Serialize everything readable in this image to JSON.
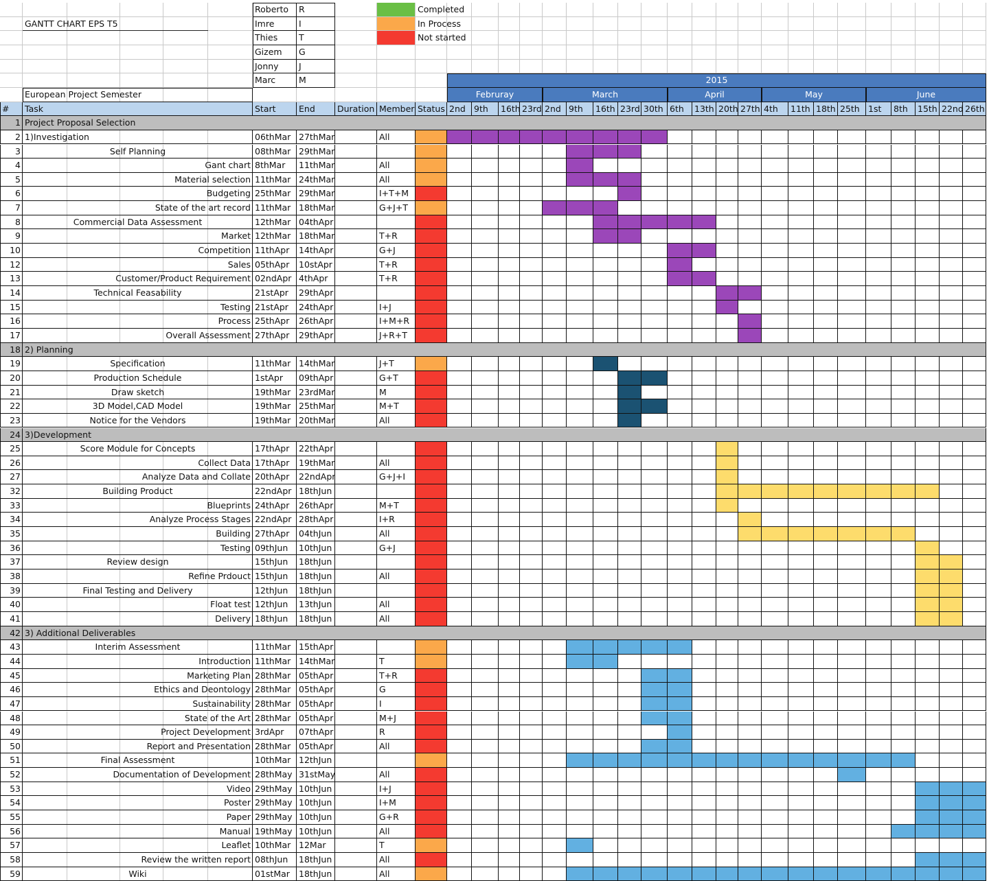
{
  "title": "GANTT CHART EPS T5",
  "project": "European Project Semester",
  "team": [
    {
      "name": "Roberto",
      "code": "R"
    },
    {
      "name": "Imre",
      "code": "I"
    },
    {
      "name": "Thies",
      "code": "T"
    },
    {
      "name": "Gizem",
      "code": "G"
    },
    {
      "name": "Jonny",
      "code": "J"
    },
    {
      "name": "Marc",
      "code": "M"
    }
  ],
  "legend": [
    {
      "label": "Completed",
      "color": "#6abf45"
    },
    {
      "label": "In Process",
      "color": "#fba84a"
    },
    {
      "label": "Not started",
      "color": "#f43a30"
    }
  ],
  "headers": {
    "num": "#",
    "task": "Task",
    "start": "Start",
    "end": "End",
    "duration": "Duration",
    "member": "Member",
    "status": "Status"
  },
  "chart_data": {
    "type": "table",
    "year": "2015",
    "months": [
      {
        "name": "Februray",
        "weeks": 4
      },
      {
        "name": "March",
        "weeks": 5
      },
      {
        "name": "April",
        "weeks": 4
      },
      {
        "name": "May",
        "weeks": 4
      },
      {
        "name": "June",
        "weeks": 5
      }
    ],
    "weeks": [
      "2nd",
      "9th",
      "16th",
      "23rd",
      "2nd",
      "9th",
      "16th",
      "23rd",
      "30th",
      "6th",
      "13th",
      "20th",
      "27th",
      "4th",
      "11th",
      "18th",
      "25th",
      "1st",
      "8th",
      "15th",
      "22nd",
      "26th"
    ],
    "colors": {
      "completed": "#6abf45",
      "in_process": "#fba84a",
      "not_started": "#f43a30",
      "investigation": "#9b47b9",
      "planning": "#1b5272",
      "development": "#fddc6c",
      "deliverables": "#62b0e1",
      "section_bg": "#bdbdbd",
      "month_bg": "#4a7bbe",
      "header_bg": "#bcd5ee"
    },
    "rows": [
      {
        "num": "1",
        "section": true,
        "task": "Project Proposal Selection"
      },
      {
        "num": "2",
        "task": "1)Investigation",
        "align": "left",
        "start": "06thMar",
        "end": "27thMar",
        "member": "All",
        "status": "in_process",
        "bars": [
          [
            0,
            8
          ]
        ],
        "bar": "investigation"
      },
      {
        "num": "3",
        "task": "Self Planning",
        "align": "center",
        "start": "08thMar",
        "end": "29thMar",
        "member": "",
        "status": "in_process",
        "bars": [
          [
            5,
            7
          ]
        ],
        "bar": "investigation"
      },
      {
        "num": "4",
        "task": "Gant chart",
        "align": "right",
        "start": "8thMar",
        "end": "11thMar",
        "member": "All",
        "status": "in_process",
        "bars": [
          [
            5,
            5
          ]
        ],
        "bar": "investigation"
      },
      {
        "num": "5",
        "task": "Material selection",
        "align": "right",
        "start": "11thMar",
        "end": "24thMar",
        "member": "All",
        "status": "in_process",
        "bars": [
          [
            5,
            7
          ]
        ],
        "bar": "investigation"
      },
      {
        "num": "6",
        "task": "Budgeting",
        "align": "right",
        "start": "25thMar",
        "end": "29thMar",
        "member": "I+T+M",
        "status": "not_started",
        "bars": [
          [
            7,
            7
          ]
        ],
        "bar": "investigation"
      },
      {
        "num": "7",
        "task": "State of the art record",
        "align": "right",
        "start": "11thMar",
        "end": "18thMar",
        "member": "G+J+T",
        "status": "in_process",
        "bars": [
          [
            4,
            6
          ]
        ],
        "bar": "investigation"
      },
      {
        "num": "8",
        "task": "Commercial Data Assessment",
        "align": "center",
        "start": "12thMar",
        "end": "04thApr",
        "member": "",
        "status": "not_started",
        "bars": [
          [
            6,
            10
          ]
        ],
        "bar": "investigation"
      },
      {
        "num": "9",
        "task": "Market",
        "align": "right",
        "start": "12thMar",
        "end": "18thMar",
        "member": "T+R",
        "status": "not_started",
        "bars": [
          [
            6,
            7
          ]
        ],
        "bar": "investigation"
      },
      {
        "num": "10",
        "task": "Competition",
        "align": "right",
        "start": "11thApr",
        "end": "14thApr",
        "member": "G+J",
        "status": "not_started",
        "bars": [
          [
            9,
            10
          ]
        ],
        "bar": "investigation"
      },
      {
        "num": "12",
        "task": "Sales",
        "align": "right",
        "start": "05thApr",
        "end": "10stApr",
        "member": "T+R",
        "status": "not_started",
        "bars": [
          [
            9,
            9
          ]
        ],
        "bar": "investigation"
      },
      {
        "num": "13",
        "task": "Customer/Product Requirement",
        "align": "right",
        "start": "02ndApr",
        "end": "4thApr",
        "member": "T+R",
        "status": "not_started",
        "bars": [
          [
            9,
            10
          ]
        ],
        "bar": "investigation"
      },
      {
        "num": "14",
        "task": "Technical Feasability",
        "align": "center",
        "start": "21stApr",
        "end": "29thApr",
        "member": "",
        "status": "not_started",
        "bars": [
          [
            11,
            12
          ]
        ],
        "bar": "investigation"
      },
      {
        "num": "15",
        "task": "Testing",
        "align": "right",
        "start": "21stApr",
        "end": "24thApr",
        "member": "I+J",
        "status": "not_started",
        "bars": [
          [
            11,
            11
          ]
        ],
        "bar": "investigation"
      },
      {
        "num": "16",
        "task": "Process",
        "align": "right",
        "start": "25thApr",
        "end": "26thApr",
        "member": "I+M+R",
        "status": "not_started",
        "bars": [
          [
            12,
            12
          ]
        ],
        "bar": "investigation"
      },
      {
        "num": "17",
        "task": "Overall Assessment",
        "align": "right",
        "start": "27thApr",
        "end": "29thApr",
        "member": "J+R+T",
        "status": "not_started",
        "bars": [
          [
            12,
            12
          ]
        ],
        "bar": "investigation"
      },
      {
        "num": "18",
        "section": true,
        "task": "2) Planning"
      },
      {
        "num": "19",
        "task": "Specification",
        "align": "center",
        "start": "11thMar",
        "end": "14thMar",
        "member": "J+T",
        "status": "in_process",
        "bars": [
          [
            6,
            6
          ]
        ],
        "bar": "planning"
      },
      {
        "num": "20",
        "task": "Production Schedule",
        "align": "center",
        "start": "1stApr",
        "end": "09thApr",
        "member": "G+T",
        "status": "not_started",
        "bars": [
          [
            7,
            8
          ]
        ],
        "bar": "planning"
      },
      {
        "num": "21",
        "task": "Draw sketch",
        "align": "center",
        "start": "19thMar",
        "end": "23rdMar",
        "member": "M",
        "status": "not_started",
        "bars": [
          [
            7,
            7
          ]
        ],
        "bar": "planning"
      },
      {
        "num": "22",
        "task": "3D Model,CAD Model",
        "align": "center",
        "start": "19thMar",
        "end": "25thMar",
        "member": "M+T",
        "status": "not_started",
        "bars": [
          [
            7,
            8
          ]
        ],
        "bar": "planning"
      },
      {
        "num": "23",
        "task": "Notice for the Vendors",
        "align": "center",
        "start": "19thMar",
        "end": "20thMar",
        "member": "All",
        "status": "not_started",
        "bars": [
          [
            7,
            7
          ]
        ],
        "bar": "planning"
      },
      {
        "num": "24",
        "section": true,
        "task": "3)Development"
      },
      {
        "num": "25",
        "task": "Score Module for Concepts",
        "align": "center",
        "start": "17thApr",
        "end": "22thApr",
        "member": "",
        "status": "not_started",
        "bars": [
          [
            11,
            11
          ]
        ],
        "bar": "development"
      },
      {
        "num": "26",
        "task": "Collect Data",
        "align": "right",
        "start": "17thApr",
        "end": "19thMar",
        "member": "All",
        "status": "not_started",
        "bars": [
          [
            11,
            11
          ]
        ],
        "bar": "development"
      },
      {
        "num": "27",
        "task": "Analyze Data and Collate",
        "align": "right",
        "start": "20thApr",
        "end": "22ndApr",
        "member": "G+J+I",
        "status": "not_started",
        "bars": [
          [
            11,
            11
          ]
        ],
        "bar": "development"
      },
      {
        "num": "32",
        "task": "Building Product",
        "align": "center",
        "start": "22ndApr",
        "end": "18thJun",
        "member": "",
        "status": "not_started",
        "bars": [
          [
            11,
            19
          ]
        ],
        "bar": "development"
      },
      {
        "num": "33",
        "task": "Blueprints",
        "align": "right",
        "start": "24thApr",
        "end": "26thApr",
        "member": "M+T",
        "status": "not_started",
        "bars": [
          [
            11,
            11
          ]
        ],
        "bar": "development"
      },
      {
        "num": "34",
        "task": "Analyze Process Stages",
        "align": "right",
        "start": "22ndApr",
        "end": "28thApr",
        "member": "I+R",
        "status": "not_started",
        "bars": [
          [
            12,
            12
          ]
        ],
        "bar": "development"
      },
      {
        "num": "35",
        "task": "Building",
        "align": "right",
        "start": "27thApr",
        "end": "04thJun",
        "member": "All",
        "status": "not_started",
        "bars": [
          [
            12,
            18
          ]
        ],
        "bar": "development"
      },
      {
        "num": "36",
        "task": "Testing",
        "align": "right",
        "start": "09thJun",
        "end": "10thJun",
        "member": "G+J",
        "status": "not_started",
        "bars": [
          [
            19,
            19
          ]
        ],
        "bar": "development"
      },
      {
        "num": "37",
        "task": "Review design",
        "align": "center",
        "start": "15thJun",
        "end": "18thJun",
        "member": "",
        "status": "not_started",
        "bars": [
          [
            19,
            20
          ]
        ],
        "bar": "development"
      },
      {
        "num": "38",
        "task": "Refine Prdouct",
        "align": "right",
        "start": "15thJun",
        "end": "18thJun",
        "member": "All",
        "status": "not_started",
        "bars": [
          [
            19,
            20
          ]
        ],
        "bar": "development"
      },
      {
        "num": "39",
        "task": "Final Testing and Delivery",
        "align": "center",
        "start": "12thJun",
        "end": "18thJun",
        "member": "",
        "status": "not_started",
        "bars": [
          [
            19,
            20
          ]
        ],
        "bar": "development"
      },
      {
        "num": "40",
        "task": "Float test",
        "align": "right",
        "start": "12thJun",
        "end": "13thJun",
        "member": "All",
        "status": "not_started",
        "bars": [
          [
            19,
            20
          ]
        ],
        "bar": "development"
      },
      {
        "num": "41",
        "task": "Delivery",
        "align": "right",
        "start": "18thJun",
        "end": "18thJun",
        "member": "All",
        "status": "not_started",
        "bars": [
          [
            19,
            20
          ]
        ],
        "bar": "development"
      },
      {
        "num": "42",
        "section": true,
        "task": "3) Additional Deliverables"
      },
      {
        "num": "43",
        "task": "Interim Assessment",
        "align": "center",
        "start": "11thMar",
        "end": "15thApr",
        "member": "",
        "status": "in_process",
        "bars": [
          [
            5,
            9
          ]
        ],
        "bar": "deliverables"
      },
      {
        "num": "44",
        "task": "Introduction",
        "align": "right",
        "start": "11thMar",
        "end": "14thMar",
        "member": "T",
        "status": "in_process",
        "bars": [
          [
            5,
            6
          ]
        ],
        "bar": "deliverables"
      },
      {
        "num": "45",
        "task": "Marketing Plan",
        "align": "right",
        "start": "28thMar",
        "end": "05thApr",
        "member": "T+R",
        "status": "not_started",
        "bars": [
          [
            8,
            9
          ]
        ],
        "bar": "deliverables"
      },
      {
        "num": "46",
        "task": "Ethics and Deontology",
        "align": "right",
        "start": "28thMar",
        "end": "05thApr",
        "member": "G",
        "status": "not_started",
        "bars": [
          [
            8,
            9
          ]
        ],
        "bar": "deliverables"
      },
      {
        "num": "47",
        "task": "Sustainability",
        "align": "right",
        "start": "28thMar",
        "end": "05thApr",
        "member": "I",
        "status": "not_started",
        "bars": [
          [
            8,
            9
          ]
        ],
        "bar": "deliverables"
      },
      {
        "num": "48",
        "task": "State of the Art",
        "align": "right",
        "start": "28thMar",
        "end": "05thApr",
        "member": "M+J",
        "status": "not_started",
        "bars": [
          [
            8,
            9
          ]
        ],
        "bar": "deliverables"
      },
      {
        "num": "49",
        "task": "Project Development",
        "align": "right",
        "start": "3rdApr",
        "end": "07thApr",
        "member": "R",
        "status": "not_started",
        "bars": [
          [
            9,
            9
          ]
        ],
        "bar": "deliverables"
      },
      {
        "num": "50",
        "task": "Report and Presentation",
        "align": "right",
        "start": "28thMar",
        "end": "05thApr",
        "member": "All",
        "status": "not_started",
        "bars": [
          [
            8,
            9
          ]
        ],
        "bar": "deliverables"
      },
      {
        "num": "51",
        "task": "Final Assessment",
        "align": "center",
        "start": "10thMar",
        "end": "12thJun",
        "member": "",
        "status": "in_process",
        "bars": [
          [
            5,
            18
          ]
        ],
        "bar": "deliverables"
      },
      {
        "num": "52",
        "task": "Documentation of Development",
        "align": "right",
        "start": "28thMay",
        "end": "31stMay",
        "member": "All",
        "status": "not_started",
        "bars": [
          [
            16,
            16
          ]
        ],
        "bar": "deliverables"
      },
      {
        "num": "53",
        "task": "Video",
        "align": "right",
        "start": "29thMay",
        "end": "10thJun",
        "member": "I+J",
        "status": "not_started",
        "bars": [
          [
            19,
            21
          ]
        ],
        "bar": "deliverables"
      },
      {
        "num": "54",
        "task": "Poster",
        "align": "right",
        "start": "29thMay",
        "end": "10thJun",
        "member": "I+M",
        "status": "not_started",
        "bars": [
          [
            19,
            21
          ]
        ],
        "bar": "deliverables"
      },
      {
        "num": "55",
        "task": "Paper",
        "align": "right",
        "start": "29thMay",
        "end": "10thJun",
        "member": "G+R",
        "status": "not_started",
        "bars": [
          [
            19,
            21
          ]
        ],
        "bar": "deliverables"
      },
      {
        "num": "56",
        "task": "Manual",
        "align": "right",
        "start": "19thMay",
        "end": "10thJun",
        "member": "All",
        "status": "not_started",
        "bars": [
          [
            18,
            21
          ]
        ],
        "bar": "deliverables"
      },
      {
        "num": "57",
        "task": "Leaflet",
        "align": "right",
        "start": "10thMar",
        "end": "12Mar",
        "member": "T",
        "status": "in_process",
        "bars": [
          [
            5,
            5
          ]
        ],
        "bar": "deliverables"
      },
      {
        "num": "58",
        "task": "Review the written report",
        "align": "right",
        "start": "08thJun",
        "end": "18thJun",
        "member": "All",
        "status": "not_started",
        "bars": [
          [
            19,
            21
          ]
        ],
        "bar": "deliverables"
      },
      {
        "num": "59",
        "task": "Wiki",
        "align": "center",
        "start": "01stMar",
        "end": "18thJun",
        "member": "All",
        "status": "in_process",
        "bars": [
          [
            5,
            21
          ]
        ],
        "bar": "deliverables"
      }
    ]
  }
}
